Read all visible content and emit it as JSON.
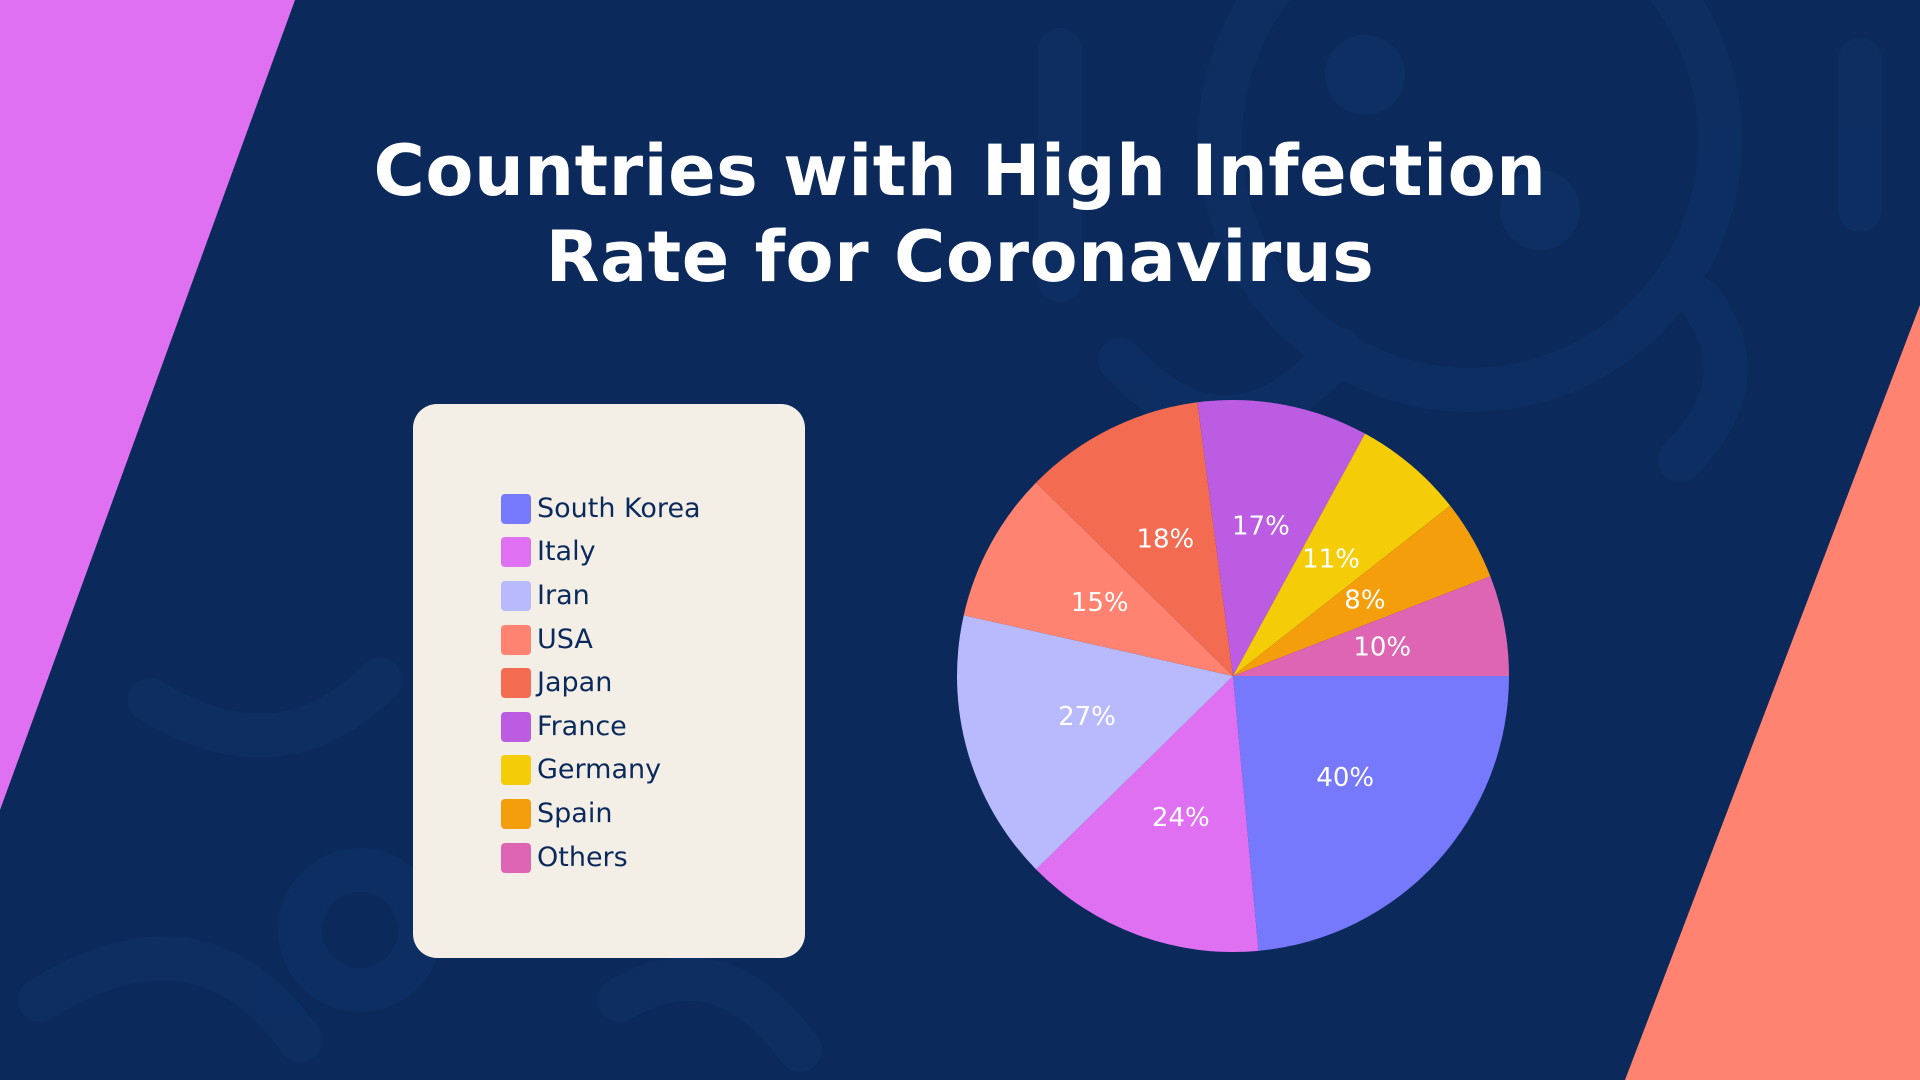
{
  "title": {
    "line1": "Countries with High Infection",
    "line2": "Rate for Coronavirus"
  },
  "colors": {
    "background": "#0b2a5b",
    "corner_left": "#e070f2",
    "corner_right": "#ff8370",
    "card": "#f3efe7",
    "text_dark": "#0b2a5b"
  },
  "chart_data": {
    "type": "pie",
    "legend_position": "left",
    "categories": [
      "South Korea",
      "Italy",
      "Iran",
      "USA",
      "Japan",
      "France",
      "Germany",
      "Spain",
      "Others"
    ],
    "values": [
      40,
      24,
      27,
      15,
      18,
      17,
      11,
      8,
      10
    ],
    "labels": [
      "40%",
      "24%",
      "27%",
      "15%",
      "18%",
      "17%",
      "11%",
      "8%",
      "10%"
    ],
    "colors": [
      "#7679fb",
      "#e070f2",
      "#b9bafd",
      "#ff8370",
      "#f36b50",
      "#bb5ce2",
      "#f4cc08",
      "#f59e0b",
      "#de65b4"
    ]
  }
}
